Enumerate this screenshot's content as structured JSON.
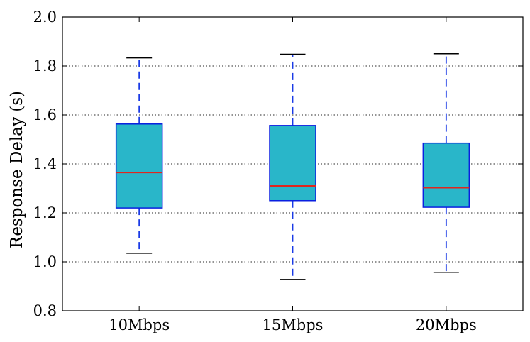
{
  "chart_data": {
    "type": "box",
    "title": "",
    "xlabel": "",
    "ylabel": "Response Delay (s)",
    "ylim": [
      0.8,
      2.0
    ],
    "yticks": [
      "0.8",
      "1.0",
      "1.2",
      "1.4",
      "1.6",
      "1.8",
      "2.0"
    ],
    "grid": "y-dotted",
    "categories": [
      "10Mbps",
      "15Mbps",
      "20Mbps"
    ],
    "boxes": [
      {
        "category": "10Mbps",
        "whisker_low": 1.035,
        "q1": 1.22,
        "median": 1.365,
        "q3": 1.563,
        "whisker_high": 1.833
      },
      {
        "category": "15Mbps",
        "whisker_low": 0.928,
        "q1": 1.25,
        "median": 1.31,
        "q3": 1.557,
        "whisker_high": 1.848
      },
      {
        "category": "20Mbps",
        "whisker_low": 0.957,
        "q1": 1.223,
        "median": 1.303,
        "q3": 1.485,
        "whisker_high": 1.85
      }
    ],
    "colors": {
      "box_fill": "#29b6c9",
      "box_edge": "#0a1fe0",
      "median": "#e0261e",
      "whisker": "#1a3ae6",
      "cap": "#000000",
      "grid": "#555555"
    }
  }
}
